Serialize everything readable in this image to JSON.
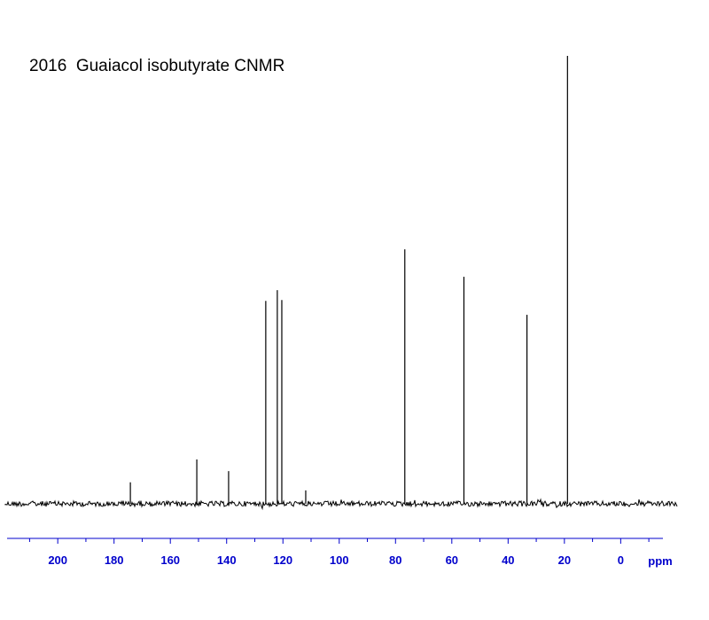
{
  "chart_data": {
    "type": "stem",
    "title": "2016  Guaiacol isobutyrate CNMR",
    "x_label": "ppm",
    "x": [
      174.2,
      150.6,
      139.3,
      126.1,
      122.0,
      120.4,
      111.9,
      76.7,
      55.7,
      33.3,
      18.9
    ],
    "values": [
      4.8,
      9.9,
      7.3,
      45.3,
      47.7,
      45.5,
      3.0,
      56.8,
      50.7,
      42.2,
      100
    ],
    "color": "#000000",
    "axis_color": "#0000cc",
    "xlim": [
      218,
      -15
    ],
    "ylim": [
      0,
      100
    ],
    "xticks": [
      200,
      180,
      160,
      140,
      120,
      100,
      80,
      60,
      40,
      20,
      0
    ],
    "xminorticks": [
      210,
      190,
      170,
      150,
      130,
      110,
      90,
      70,
      50,
      30,
      10,
      -10
    ]
  }
}
